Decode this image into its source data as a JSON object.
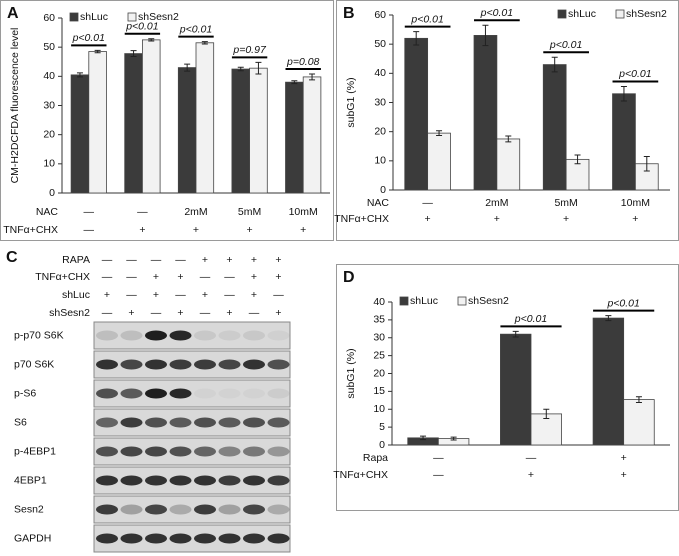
{
  "chart_data": [
    {
      "type": "bar",
      "panel": "A",
      "y_label": "CM-H2DCFDA fluorescence level",
      "legend": "upper left",
      "ylim": [
        0,
        60
      ],
      "yticks": [
        0,
        10,
        20,
        30,
        40,
        50,
        60
      ],
      "series": [
        {
          "name": "shLuc",
          "color": "#3b3b3b",
          "values": [
            40.5,
            47.8,
            43,
            42.5,
            38
          ],
          "errors": [
            0.7,
            1,
            1.2,
            0.6,
            0.5
          ]
        },
        {
          "name": "shSesn2",
          "color": "#f2f2f2",
          "values": [
            48.5,
            52.5,
            51.5,
            42.8,
            39.8
          ],
          "errors": [
            0.4,
            0.4,
            0.4,
            2,
            1
          ]
        }
      ],
      "annotations": [
        "p<0.01",
        "p<0.01",
        "p<0.01",
        "p=0.97",
        "p=0.08"
      ],
      "condition_rows": [
        {
          "label": "NAC",
          "values": [
            "—",
            "—",
            "2mM",
            "5mM",
            "10mM"
          ]
        },
        {
          "label": "TNFα+CHX",
          "values": [
            "—",
            "+",
            "+",
            "+",
            "+"
          ]
        }
      ]
    },
    {
      "type": "bar",
      "panel": "B",
      "y_label": "subG1 (%)",
      "legend": "upper right",
      "ylim": [
        0,
        60
      ],
      "yticks": [
        0,
        10,
        20,
        30,
        40,
        50,
        60
      ],
      "series": [
        {
          "name": "shLuc",
          "color": "#3b3b3b",
          "values": [
            52,
            53,
            43,
            33
          ],
          "errors": [
            2.3,
            3.5,
            2.5,
            2.5
          ]
        },
        {
          "name": "shSesn2",
          "color": "#f2f2f2",
          "values": [
            19.5,
            17.5,
            10.5,
            9
          ],
          "errors": [
            0.8,
            1,
            1.5,
            2.5
          ]
        }
      ],
      "annotations": [
        "p<0.01",
        "p<0.01",
        "p<0.01",
        "p<0.01"
      ],
      "condition_rows": [
        {
          "label": "NAC",
          "values": [
            "—",
            "2mM",
            "5mM",
            "10mM"
          ]
        },
        {
          "label": "TNFα+CHX",
          "values": [
            "+",
            "+",
            "+",
            "+"
          ]
        }
      ]
    },
    {
      "type": "bar",
      "panel": "D",
      "y_label": "subG1 (%)",
      "legend": "upper left",
      "ylim": [
        0,
        40
      ],
      "yticks": [
        0,
        5,
        10,
        15,
        20,
        25,
        30,
        35,
        40
      ],
      "series": [
        {
          "name": "shLuc",
          "color": "#3b3b3b",
          "values": [
            2,
            31,
            35.5
          ],
          "errors": [
            0.5,
            0.8,
            0.7
          ]
        },
        {
          "name": "shSesn2",
          "color": "#f2f2f2",
          "values": [
            1.8,
            8.7,
            12.7
          ],
          "errors": [
            0.4,
            1.3,
            0.8
          ]
        }
      ],
      "annotations": [
        null,
        "p<0.01",
        "p<0.01"
      ],
      "condition_rows": [
        {
          "label": "Rapa",
          "values": [
            "—",
            "—",
            "+"
          ]
        },
        {
          "label": "TNFα+CHX",
          "values": [
            "—",
            "+",
            "+"
          ]
        }
      ]
    }
  ],
  "blot": {
    "panel": "C",
    "conditions": [
      {
        "label": "RAPA",
        "values": [
          "—",
          "—",
          "—",
          "—",
          "+",
          "+",
          "+",
          "+"
        ]
      },
      {
        "label": "TNFα+CHX",
        "values": [
          "—",
          "—",
          "+",
          "+",
          "—",
          "—",
          "+",
          "+"
        ]
      },
      {
        "label": "shLuc",
        "values": [
          "+",
          "—",
          "+",
          "—",
          "+",
          "—",
          "+",
          "—"
        ]
      },
      {
        "label": "shSesn2",
        "values": [
          "—",
          "+",
          "—",
          "+",
          "—",
          "+",
          "—",
          "+"
        ]
      }
    ],
    "rows": [
      "p-p70 S6K",
      "p70 S6K",
      "p-S6",
      "S6",
      "p-4EBP1",
      "4EBP1",
      "Sesn2",
      "GAPDH"
    ]
  }
}
